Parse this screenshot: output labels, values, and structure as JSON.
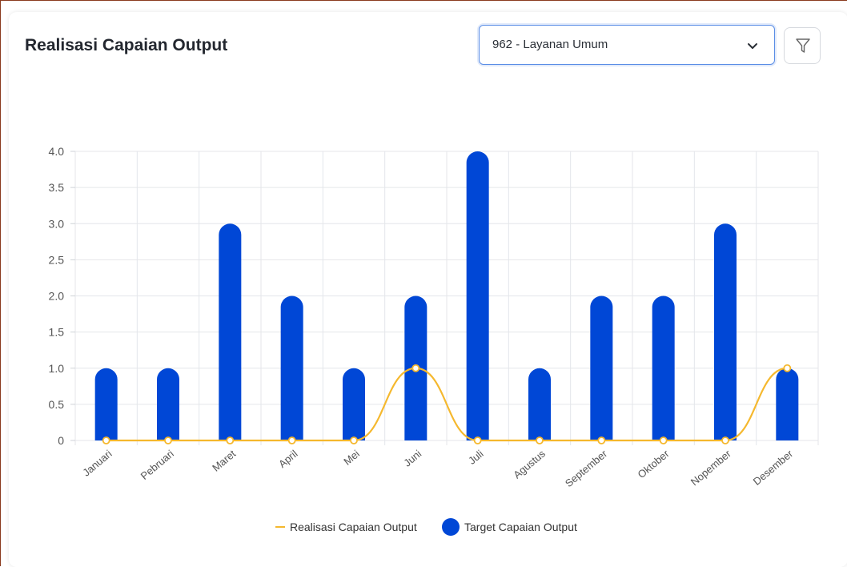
{
  "card": {
    "title": "Realisasi Capaian Output",
    "select_value": "962 - Layanan Umum"
  },
  "icons": {
    "select_chevron": "chevron-down-icon",
    "filter": "filter-icon"
  },
  "colors": {
    "bar": "#0047d6",
    "line": "#f5b82e",
    "grid": "#e4e6ea"
  },
  "chart_data": {
    "type": "bar",
    "categories": [
      "Januari",
      "Pebruari",
      "Maret",
      "April",
      "Mei",
      "Juni",
      "Juli",
      "Agustus",
      "September",
      "Oktober",
      "Nopember",
      "Desember"
    ],
    "series": [
      {
        "name": "Target Capaian Output",
        "type": "bar",
        "values": [
          1,
          1,
          3,
          2,
          1,
          2,
          4,
          1,
          2,
          2,
          3,
          1
        ]
      },
      {
        "name": "Realisasi Capaian Output",
        "type": "line",
        "values": [
          0,
          0,
          0,
          0,
          0,
          1,
          0,
          0,
          0,
          0,
          0,
          1
        ]
      }
    ],
    "ylim": [
      0,
      4
    ],
    "yticks": [
      "0",
      "0.5",
      "1.0",
      "1.5",
      "2.0",
      "2.5",
      "3.0",
      "3.5",
      "4.0"
    ],
    "grid": true,
    "legend_position": "bottom"
  }
}
